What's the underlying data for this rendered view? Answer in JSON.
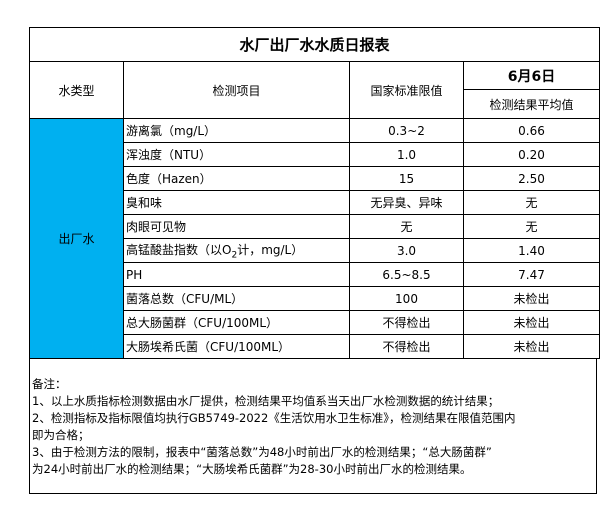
{
  "title": "水厂出厂水水质日报表",
  "headers": {
    "water_type": "水类型",
    "item": "检测项目",
    "limit": "国家标准限值",
    "date": "6月6日",
    "result": "检测结果平均值"
  },
  "water_type": "出厂水",
  "rows": [
    {
      "item": "游离氯（mg/L）",
      "limit": "0.3~2",
      "result": "0.66"
    },
    {
      "item": "浑浊度（NTU）",
      "limit": "1.0",
      "result": "0.20"
    },
    {
      "item": "色度（Hazen）",
      "limit": "15",
      "result": "2.50"
    },
    {
      "item": "臭和味",
      "limit": "无异臭、异味",
      "result": "无"
    },
    {
      "item": "肉眼可见物",
      "limit": "无",
      "result": "无"
    },
    {
      "item_pre": "高锰酸盐指数（以O",
      "item_sub": "2",
      "item_post": "计，mg/L）",
      "limit": "3.0",
      "result": "1.40"
    },
    {
      "item": "PH",
      "limit": "6.5~8.5",
      "result": "7.47"
    },
    {
      "item": "菌落总数（CFU/ML）",
      "limit": "100",
      "result": "未检出"
    },
    {
      "item": "总大肠菌群（CFU/100ML）",
      "limit": "不得检出",
      "result": "未检出"
    },
    {
      "item": "大肠埃希氏菌（CFU/100ML）",
      "limit": "不得检出",
      "result": "未检出"
    }
  ],
  "notes": [
    "备注：",
    "1、以上水质指标检测数据由水厂提供，检测结果平均值系当天出厂水检测数据的统计结果；",
    "2、检测指标及指标限值均执行GB5749-2022《生活饮用水卫生标准》，检测结果在限值范围内",
    "即为合格；",
    "3、由于检测方法的限制，报表中“菌落总数”为48小时前出厂水的检测结果；“总大肠菌群”",
    "为24小时前出厂水的检测结果；“大肠埃希氏菌群”为28-30小时前出厂水的检测结果。"
  ],
  "colors": {
    "water_type_bg": "#00B0F0"
  }
}
